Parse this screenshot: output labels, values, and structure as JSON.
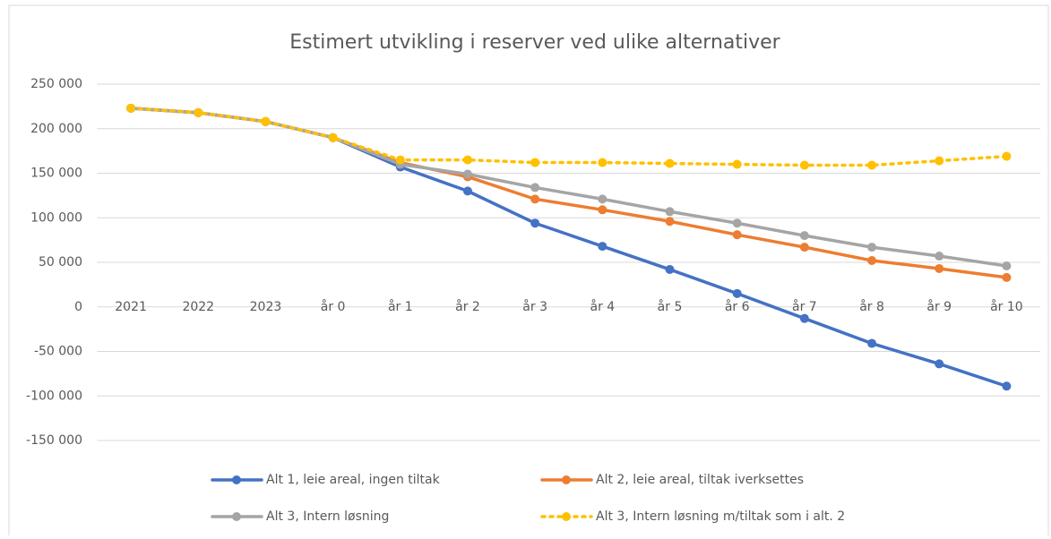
{
  "chart_data": {
    "type": "line",
    "title": "Estimert utvikling i reserver ved ulike alternativer",
    "categories": [
      "2021",
      "2022",
      "2023",
      "år 0",
      "år 1",
      "år 2",
      "år 3",
      "år 4",
      "år 5",
      "år 6",
      "år 7",
      "år 8",
      "år 9",
      "år 10"
    ],
    "series": [
      {
        "name": "Alt 1, leie areal, ingen tiltak",
        "color": "#4472c4",
        "style": "solid",
        "values": [
          223000,
          218000,
          208000,
          190000,
          157000,
          130000,
          94000,
          68000,
          42000,
          15000,
          -13000,
          -41000,
          -64000,
          -89000
        ]
      },
      {
        "name": "Alt 2, leie areal, tiltak iverksettes",
        "color": "#ed7d31",
        "style": "solid",
        "values": [
          223000,
          218000,
          208000,
          190000,
          162000,
          146000,
          121000,
          109000,
          96000,
          81000,
          67000,
          52000,
          43000,
          33000
        ]
      },
      {
        "name": "Alt 3, Intern løsning",
        "color": "#a5a5a5",
        "style": "solid",
        "values": [
          223000,
          218000,
          208000,
          190000,
          160000,
          149000,
          134000,
          121000,
          107000,
          94000,
          80000,
          67000,
          57000,
          46000
        ]
      },
      {
        "name": "Alt 3, Intern løsning m/tiltak som i alt. 2",
        "color": "#ffc000",
        "style": "dotted",
        "values": [
          223000,
          218000,
          208000,
          190000,
          165000,
          165000,
          162000,
          162000,
          161000,
          160000,
          159000,
          159000,
          164000,
          169000
        ]
      }
    ],
    "ylim": [
      -150000,
      250000
    ],
    "yticks": [
      {
        "value": -150000,
        "label": "-150 000"
      },
      {
        "value": -100000,
        "label": "-100 000"
      },
      {
        "value": -50000,
        "label": "-50 000"
      },
      0,
      {
        "value": 50000,
        "label": "50 000"
      },
      {
        "value": 100000,
        "label": "100 000"
      },
      {
        "value": 150000,
        "label": "150 000"
      },
      {
        "value": 200000,
        "label": "200 000"
      },
      {
        "value": 250000,
        "label": "250 000"
      }
    ],
    "grid": true
  }
}
